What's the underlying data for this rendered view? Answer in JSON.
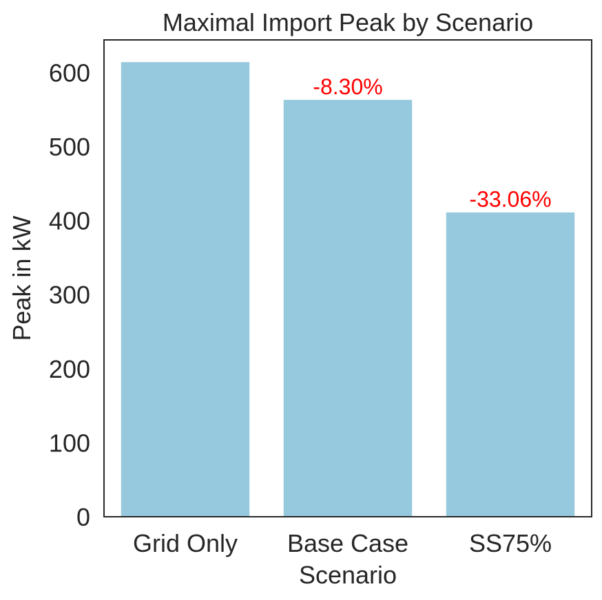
{
  "chart_data": {
    "type": "bar",
    "title": "Maximal Import Peak by Scenario",
    "xlabel": "Scenario",
    "ylabel": "Peak in kW",
    "categories": [
      "Grid Only",
      "Base Case",
      "SS75%"
    ],
    "values": [
      614,
      563,
      411
    ],
    "ylim": [
      0,
      644
    ],
    "yticks": [
      0,
      100,
      200,
      300,
      400,
      500,
      600
    ],
    "annotations": [
      "",
      "-8.30%",
      "-33.06%"
    ],
    "grid": false,
    "colors": {
      "bar": "#96c9de",
      "annotation": "#ff0000",
      "axis": "#262626"
    }
  }
}
